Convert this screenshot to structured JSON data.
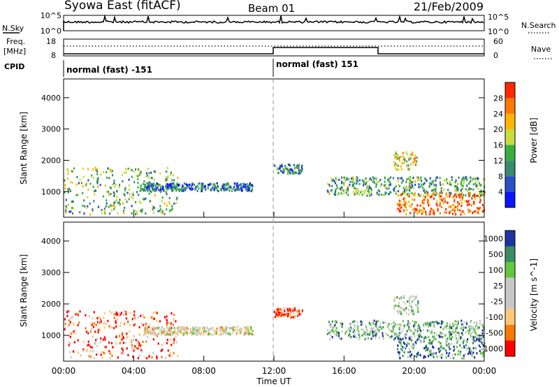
{
  "header": {
    "station": "Syowa East (fitACF)",
    "beam": "Beam 01",
    "date": "21/Feb/2009"
  },
  "noise_panel": {
    "left_label": "N.Sky",
    "right_label": "N.Search",
    "left_ticks": [
      "10^5",
      "10^0"
    ],
    "right_ticks": [
      "10^5",
      "10^0"
    ]
  },
  "freq_panel": {
    "left_label_1": "Freq.",
    "left_label_2": "[MHz]",
    "right_label": "Nave",
    "left_ticks": [
      "18",
      "8"
    ],
    "right_ticks": [
      "60",
      "0"
    ]
  },
  "cpid": {
    "label": "CPID",
    "modes": [
      {
        "text": "normal (fast) -151",
        "start_hour": 0
      },
      {
        "text": "normal (fast) 151",
        "start_hour": 12
      }
    ]
  },
  "x_axis": {
    "label": "Time UT",
    "ticks": [
      "00:00",
      "04:00",
      "08:00",
      "12:00",
      "16:00",
      "20:00",
      "00:00"
    ]
  },
  "chart_data": [
    {
      "type": "heatmap",
      "title": "",
      "xlabel": "Time UT",
      "ylabel": "Slant Range [km]",
      "xlim": [
        0,
        24
      ],
      "ylim": [
        180,
        4600
      ],
      "y_ticks": [
        "1000",
        "2000",
        "3000",
        "4000"
      ],
      "colorbar": {
        "label": "Power [dB]",
        "ticks": [
          "28",
          "24",
          "20",
          "16",
          "12",
          "8",
          "4"
        ],
        "colors": [
          "#0a14ff",
          "#2850c8",
          "#3a8a6e",
          "#38b040",
          "#c8dc3c",
          "#ffb400",
          "#ff7800",
          "#ff2800"
        ]
      },
      "echo_regions": [
        {
          "t0": 0.0,
          "t1": 6.5,
          "r0": 300,
          "r1": 1800,
          "level": 0.45
        },
        {
          "t0": 4.5,
          "t1": 10.8,
          "r0": 1050,
          "r1": 1300,
          "level": 0.25
        },
        {
          "t0": 12.0,
          "t1": 13.6,
          "r0": 1600,
          "r1": 1900,
          "level": 0.3
        },
        {
          "t0": 15.0,
          "t1": 24.0,
          "r0": 900,
          "r1": 1500,
          "level": 0.4
        },
        {
          "t0": 19.0,
          "t1": 24.0,
          "r0": 300,
          "r1": 1000,
          "level": 0.85
        },
        {
          "t0": 18.8,
          "t1": 20.2,
          "r0": 1700,
          "r1": 2300,
          "level": 0.55
        }
      ]
    },
    {
      "type": "heatmap",
      "title": "",
      "xlabel": "Time UT",
      "ylabel": "Slant Range [km]",
      "xlim": [
        0,
        24
      ],
      "ylim": [
        180,
        4600
      ],
      "y_ticks": [
        "1000",
        "2000",
        "3000",
        "4000"
      ],
      "colorbar": {
        "label": "Velocity [m s^-1]",
        "ticks": [
          "1000",
          "500",
          "100",
          "25",
          "-25",
          "-100",
          "-500",
          "-1000"
        ],
        "colors": [
          "#ff0000",
          "#ff7800",
          "#ffc878",
          "#c8c8c8",
          "#c8c8c8",
          "#64c83c",
          "#3c8c64",
          "#1e32a0"
        ]
      },
      "echo_regions": [
        {
          "t0": 0.0,
          "t1": 6.5,
          "r0": 300,
          "r1": 1800,
          "level": 0.2
        },
        {
          "t0": 4.5,
          "t1": 10.8,
          "r0": 1050,
          "r1": 1300,
          "level": 0.45
        },
        {
          "t0": 12.0,
          "t1": 13.6,
          "r0": 1600,
          "r1": 1900,
          "level": 0.15
        },
        {
          "t0": 15.0,
          "t1": 24.0,
          "r0": 900,
          "r1": 1500,
          "level": 0.7
        },
        {
          "t0": 19.0,
          "t1": 24.0,
          "r0": 300,
          "r1": 1000,
          "level": 0.8
        },
        {
          "t0": 18.8,
          "t1": 20.2,
          "r0": 1700,
          "r1": 2300,
          "level": 0.6
        }
      ]
    }
  ]
}
